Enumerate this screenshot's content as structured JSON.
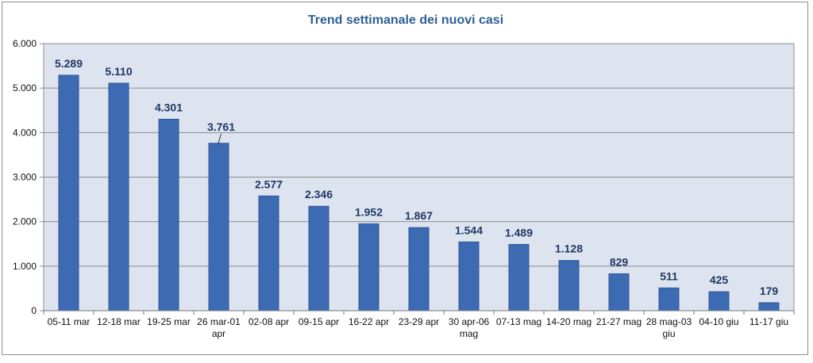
{
  "chart_data": {
    "type": "bar",
    "title": "Trend settimanale dei nuovi casi",
    "xlabel": "",
    "ylabel": "",
    "ylim": [
      0,
      6000
    ],
    "yticks": [
      0,
      1000,
      2000,
      3000,
      4000,
      5000,
      6000
    ],
    "ytick_labels": [
      "0",
      "1.000",
      "2.000",
      "3.000",
      "4.000",
      "5.000",
      "6.000"
    ],
    "grid": true,
    "legend": "none",
    "categories": [
      [
        "05-11 mar"
      ],
      [
        "12-18 mar"
      ],
      [
        "19-25 mar"
      ],
      [
        "26 mar-01",
        "apr"
      ],
      [
        "02-08 apr"
      ],
      [
        "09-15 apr"
      ],
      [
        "16-22 apr"
      ],
      [
        "23-29 apr"
      ],
      [
        "30 apr-06",
        "mag"
      ],
      [
        "07-13 mag"
      ],
      [
        "14-20 mag"
      ],
      [
        "21-27 mag"
      ],
      [
        "28 mag-03",
        "giu"
      ],
      [
        "04-10 giu"
      ],
      [
        "11-17 giu"
      ]
    ],
    "values": [
      5289,
      5110,
      4301,
      3761,
      2577,
      2346,
      1952,
      1867,
      1544,
      1489,
      1128,
      829,
      511,
      425,
      179
    ],
    "data_labels": [
      "5.289",
      "5.110",
      "4.301",
      "3.761",
      "2.577",
      "2.346",
      "1.952",
      "1.867",
      "1.544",
      "1.489",
      "1.128",
      "829",
      "511",
      "425",
      "179"
    ],
    "colors": {
      "bar": "#3d6bb3",
      "bar_edge": "#2f5597",
      "plot_background": "#dde4ef",
      "gridline": "#8c8c8c",
      "title": "#2e5f95",
      "data_label": "#1f3864"
    }
  }
}
